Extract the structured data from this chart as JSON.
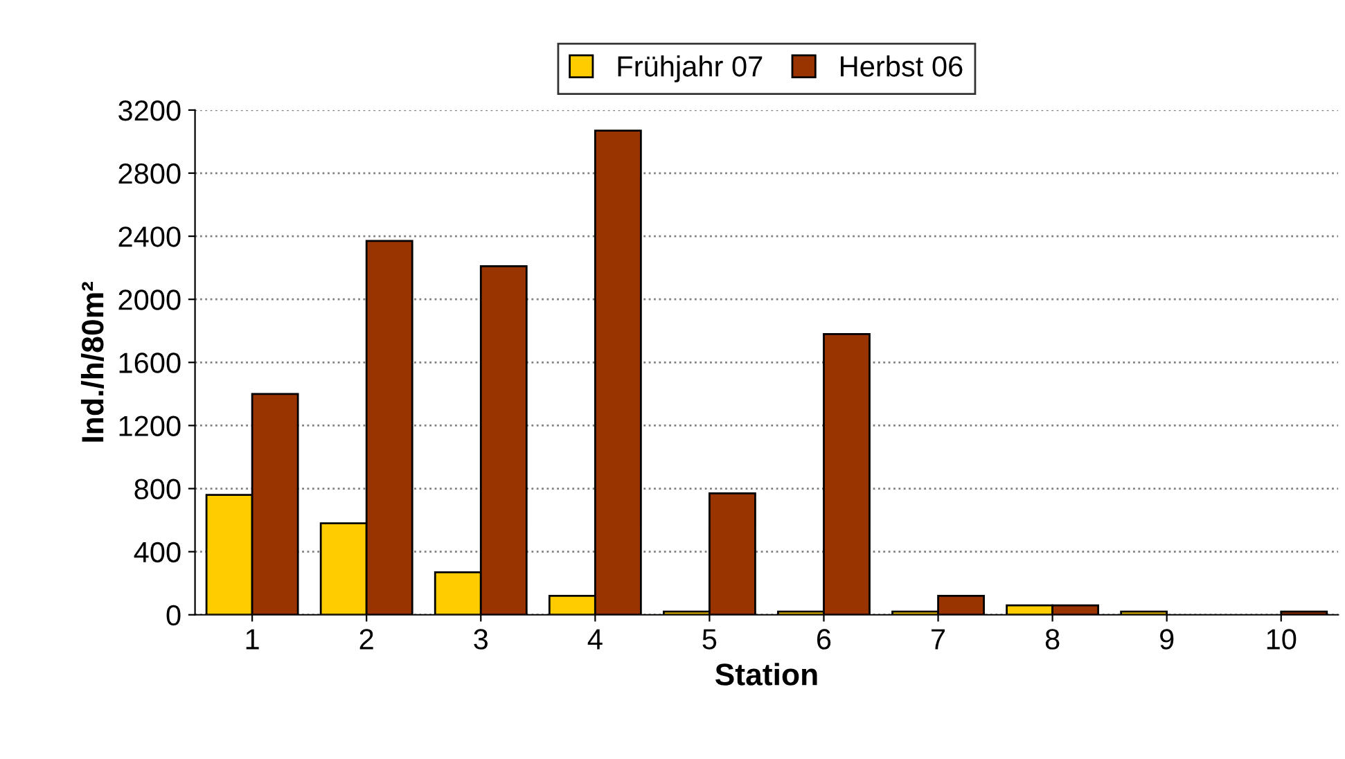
{
  "chart_data": {
    "type": "bar",
    "xlabel": "Station",
    "ylabel": "Ind./h/80m²",
    "categories": [
      "1",
      "2",
      "3",
      "4",
      "5",
      "6",
      "7",
      "8",
      "9",
      "10"
    ],
    "series": [
      {
        "name": "Frühjahr 07",
        "color": "#ffcc00",
        "values": [
          760,
          580,
          270,
          120,
          20,
          20,
          20,
          60,
          20,
          null
        ]
      },
      {
        "name": "Herbst 06",
        "color": "#993300",
        "values": [
          1400,
          2370,
          2210,
          3070,
          770,
          1780,
          120,
          60,
          null,
          20
        ]
      }
    ],
    "ylim": [
      0,
      3200
    ],
    "yticks": [
      0,
      400,
      800,
      1200,
      1600,
      2000,
      2400,
      2800,
      3200
    ],
    "grid": "y",
    "legend": "top"
  }
}
